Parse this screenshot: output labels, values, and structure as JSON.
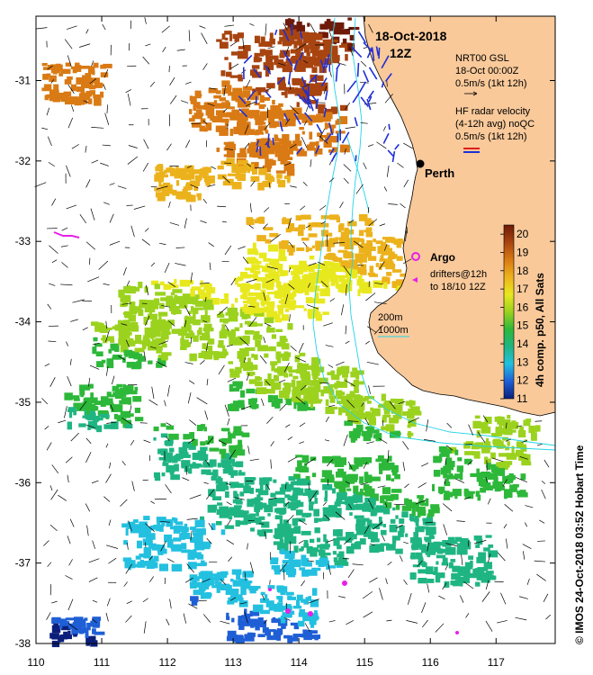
{
  "header": {
    "date": "18-Oct-2018",
    "time": "12Z"
  },
  "legend": {
    "gsl_title": "NRT00 GSL",
    "gsl_time": "18-Oct 00:00Z",
    "gsl_scale": "0.5m/s (1kt 12h)",
    "hf_title": "HF radar velocity",
    "hf_sub": "(4-12h avg) noQC",
    "hf_scale": "0.5m/s (1kt 12h)",
    "argo": "Argo",
    "drifters": "drifters@12h",
    "drifters_to": "to 18/10 12Z",
    "iso200": "200m",
    "iso1000": "1000m"
  },
  "city": {
    "name": "Perth"
  },
  "colorbar": {
    "title": "4h comp. p50, All Sats",
    "ticks": [
      "20",
      "19",
      "18",
      "17",
      "16",
      "15",
      "14",
      "13",
      "12",
      "11"
    ],
    "min": 11,
    "max": 20.5,
    "colors": [
      "#0b1f7a",
      "#1f5fd6",
      "#23c0e0",
      "#1fb582",
      "#2db83a",
      "#9bd21e",
      "#e8e81e",
      "#ecb21c",
      "#d97a14",
      "#a84410",
      "#6e1a08"
    ]
  },
  "axes": {
    "x_ticks": [
      "110",
      "111",
      "112",
      "113",
      "114",
      "115",
      "116",
      "117"
    ],
    "y_ticks": [
      "-31",
      "-32",
      "-33",
      "-34",
      "-35",
      "-36",
      "-37",
      "-38"
    ],
    "lon_range": [
      110,
      117.9
    ],
    "lat_range": [
      -38,
      -30.2
    ]
  },
  "credit": "© IMOS 24-Oct-2018 03:52 Hobart Time",
  "colors": {
    "land": "#f9c99a",
    "isobath": "#22d3e8",
    "hf_blue": "#1f2fd6",
    "hf_red": "#e01f1f",
    "argo": "#e81fe8",
    "gsl": "#000000"
  }
}
